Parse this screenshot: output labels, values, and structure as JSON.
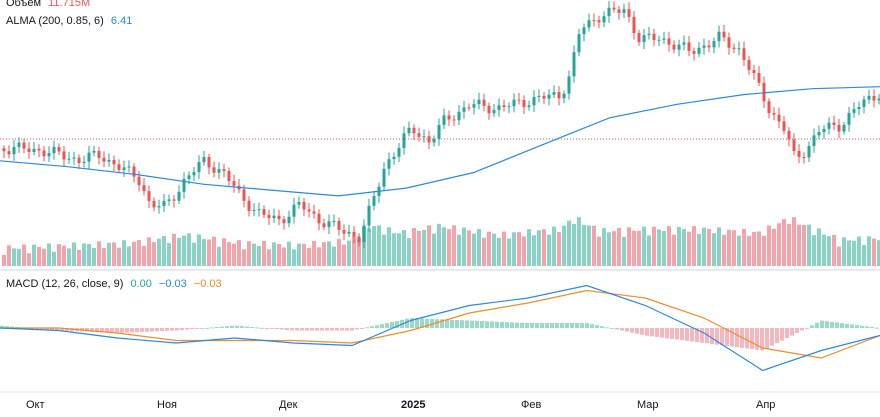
{
  "legend": {
    "volume_label": "Объём",
    "volume_value": "11.715M",
    "alma_label": "ALMA (200, 0.85, 6)",
    "alma_value": "6.41",
    "macd_label": "MACD (12, 26, close, 9)",
    "macd_hist": "0.00",
    "macd_line": "−0.03",
    "macd_signal": "−0.03"
  },
  "colors": {
    "up": "#26a69a",
    "down": "#ef5350",
    "vol_up": "#88d3c4",
    "vol_down": "#f5a3ab",
    "alma": "#2a8ae0",
    "macd_line": "#2a8ae0",
    "signal_line": "#ef8c2d",
    "hist_up": "#9adbc8",
    "hist_down": "#f7b6bd",
    "price_line": "#ef5350",
    "alma_value": "#2a8ae0",
    "volume_value": "#ef5350"
  },
  "chart_data": [
    {
      "type": "candlestick",
      "title": "",
      "x_ticks": [
        "Окт",
        "Ноя",
        "Дек",
        "2025",
        "Фев",
        "Мар",
        "Апр"
      ],
      "alma_series": "ALMA (200, 0.85, 6)",
      "volume_series": "Объём",
      "grid": false,
      "alma_ylim": [
        0,
        100
      ],
      "alma_values": [
        56,
        53,
        49,
        44,
        41,
        38,
        42,
        50,
        64,
        78,
        85,
        90,
        93,
        94
      ]
    },
    {
      "type": "line",
      "title": "MACD (12, 26, close, 9)",
      "series": [
        {
          "name": "MACD",
          "values": [
            0.0,
            -0.01,
            -0.04,
            -0.06,
            -0.04,
            -0.06,
            -0.07,
            0.03,
            0.09,
            0.12,
            0.17,
            0.09,
            -0.02,
            -0.17,
            -0.09,
            -0.03
          ]
        },
        {
          "name": "Signal",
          "values": [
            0.0,
            0.0,
            -0.02,
            -0.05,
            -0.05,
            -0.05,
            -0.06,
            -0.01,
            0.06,
            0.1,
            0.15,
            0.12,
            0.04,
            -0.08,
            -0.12,
            -0.03
          ]
        }
      ],
      "histogram": [
        0.01,
        -0.01,
        -0.02,
        -0.01,
        0.01,
        -0.01,
        -0.01,
        0.04,
        0.03,
        0.02,
        0.02,
        -0.03,
        -0.06,
        -0.09,
        0.03,
        0.0
      ]
    }
  ]
}
